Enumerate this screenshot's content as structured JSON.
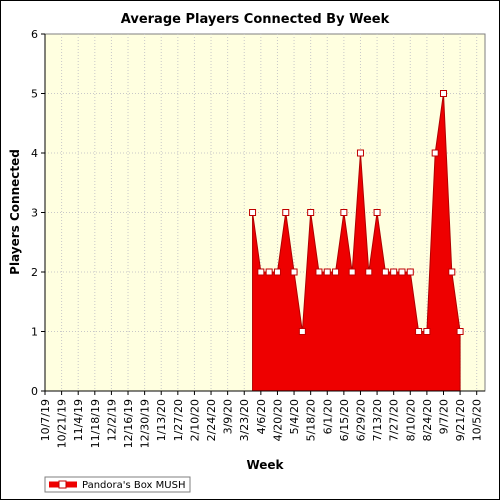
{
  "chart_data": {
    "type": "area",
    "title": "Average Players Connected By Week",
    "xlabel": "Week",
    "ylabel": "Players Connected",
    "ylim": [
      0,
      6
    ],
    "yticks": [
      "0",
      "1",
      "2",
      "3",
      "4",
      "5",
      "6"
    ],
    "xtick_labels": [
      "10/7/19",
      "10/21/19",
      "11/4/19",
      "11/18/19",
      "12/2/19",
      "12/16/19",
      "12/30/19",
      "1/13/20",
      "1/27/20",
      "2/10/20",
      "2/24/20",
      "3/9/20",
      "3/23/20",
      "4/6/20",
      "4/20/20",
      "5/4/20",
      "5/18/20",
      "6/1/20",
      "6/15/20",
      "6/29/20",
      "7/13/20",
      "7/27/20",
      "8/10/20",
      "8/24/20",
      "9/7/20",
      "9/21/20",
      "10/5/20"
    ],
    "weeks": [
      "10/7/19",
      "10/14/19",
      "10/21/19",
      "10/28/19",
      "11/4/19",
      "11/11/19",
      "11/18/19",
      "11/25/19",
      "12/2/19",
      "12/9/19",
      "12/16/19",
      "12/23/19",
      "12/30/19",
      "1/6/20",
      "1/13/20",
      "1/20/20",
      "1/27/20",
      "2/3/20",
      "2/10/20",
      "2/17/20",
      "2/24/20",
      "3/2/20",
      "3/9/20",
      "3/16/20",
      "3/23/20",
      "3/30/20",
      "4/6/20",
      "4/13/20",
      "4/20/20",
      "4/27/20",
      "5/4/20",
      "5/11/20",
      "5/18/20",
      "5/25/20",
      "6/1/20",
      "6/8/20",
      "6/15/20",
      "6/22/20",
      "6/29/20",
      "7/6/20",
      "7/13/20",
      "7/20/20",
      "7/27/20",
      "8/3/20",
      "8/10/20",
      "8/17/20",
      "8/24/20",
      "8/31/20",
      "9/7/20",
      "9/14/20",
      "9/21/20",
      "9/28/20",
      "10/5/20",
      "10/12/20"
    ],
    "series": [
      {
        "name": "Pandora's Box MUSH",
        "color": "#ee0000",
        "start_week": "3/30/20",
        "values": [
          3,
          2,
          2,
          2,
          3,
          2,
          1,
          3,
          2,
          2,
          2,
          3,
          2,
          4,
          2,
          3,
          2,
          2,
          2,
          2,
          1,
          1,
          4,
          5,
          2,
          1
        ]
      }
    ],
    "legend": "bottom-left",
    "plot_background": "#ffffe0",
    "grid": true
  }
}
